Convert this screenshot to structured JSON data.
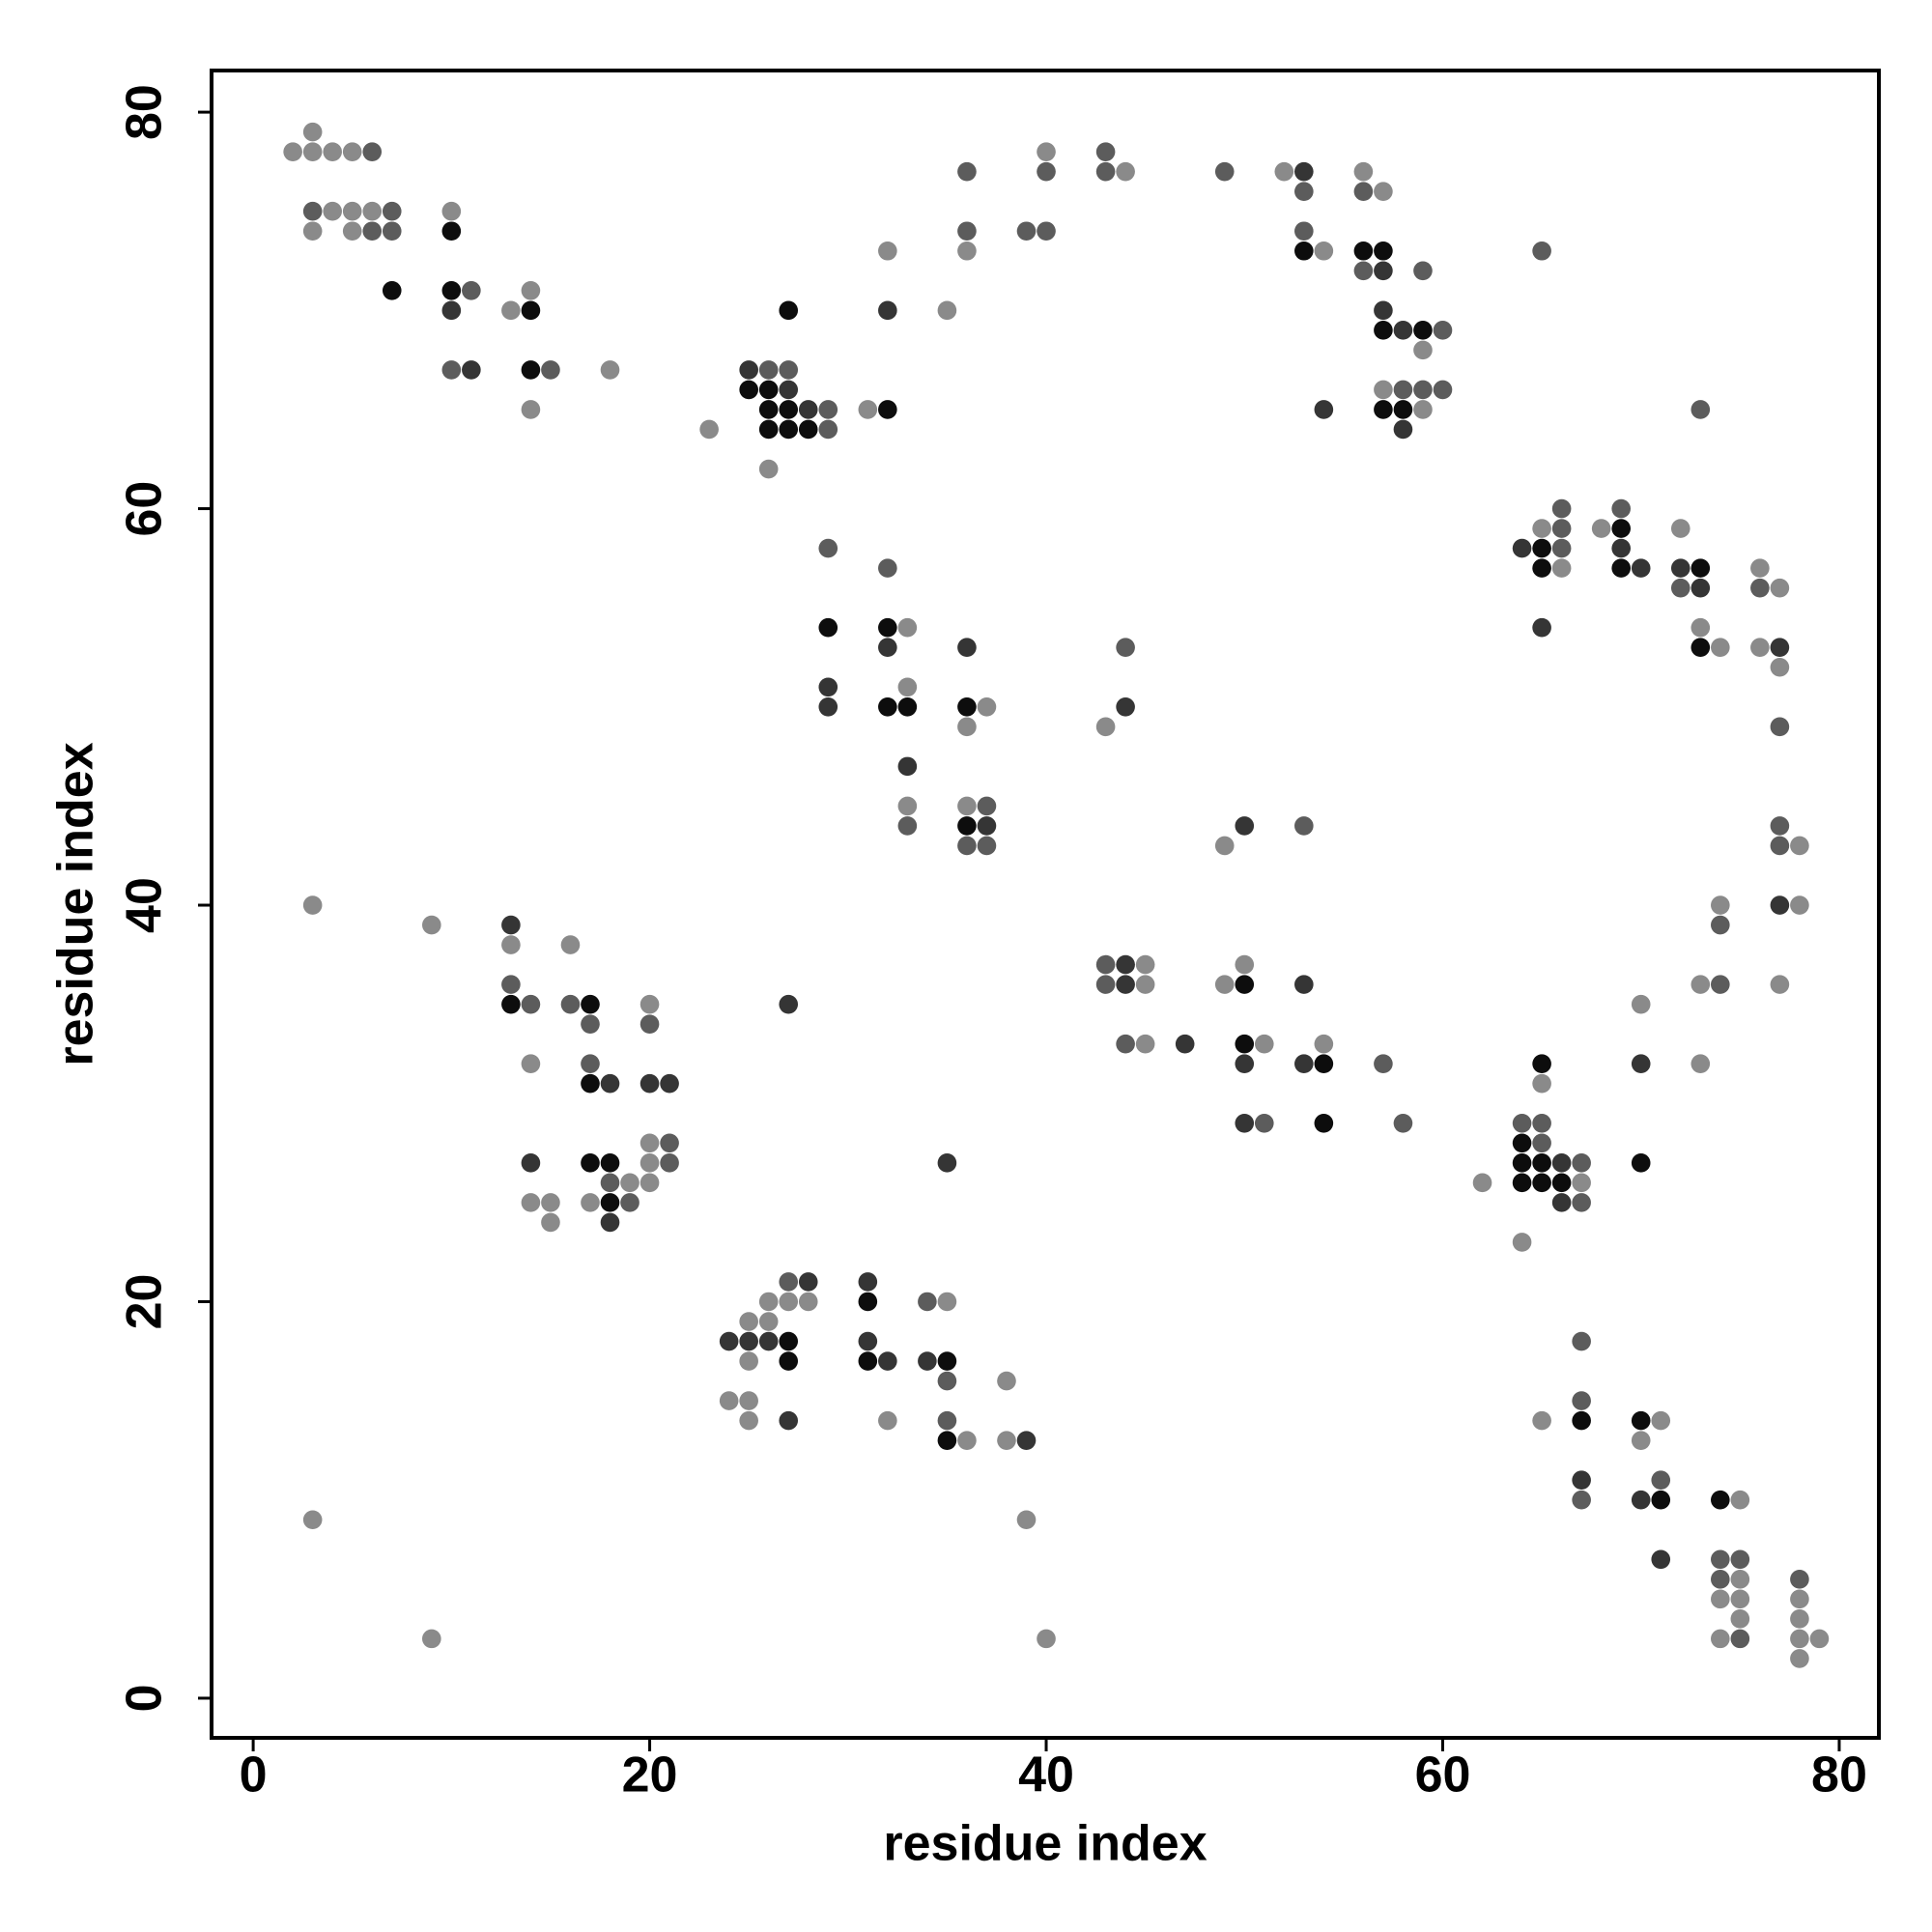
{
  "chart_data": {
    "type": "scatter",
    "x_label": "residue index",
    "y_label": "residue index",
    "xlim": [
      -2.1,
      82.0
    ],
    "ylim": [
      -2.0,
      82.1
    ],
    "xticks": [
      0,
      20,
      40,
      60,
      80
    ],
    "yticks": [
      0,
      20,
      40,
      60,
      80
    ],
    "series": [
      {
        "color": "#0d0d0d",
        "x": [
          7,
          10,
          10,
          13,
          14,
          14,
          17,
          17,
          17,
          18,
          18,
          25,
          26,
          26,
          26,
          27,
          27,
          27,
          27,
          27,
          28,
          29,
          31,
          31,
          32,
          32,
          32,
          33,
          35,
          35,
          36,
          36,
          50,
          50,
          53,
          54,
          54,
          56,
          57,
          57,
          57,
          58,
          59,
          64,
          64,
          64,
          65,
          65,
          65,
          65,
          65,
          66,
          67,
          69,
          69,
          70,
          70,
          71,
          73,
          73,
          74
        ],
        "values": [
          71,
          74,
          71,
          35,
          70,
          67,
          35,
          31,
          27,
          27,
          25,
          66,
          66,
          65,
          64,
          70,
          65,
          64,
          18,
          17,
          64,
          54,
          20,
          17,
          65,
          54,
          50,
          50,
          17,
          13,
          50,
          44,
          36,
          33,
          73,
          32,
          29,
          73,
          73,
          69,
          65,
          65,
          69,
          28,
          27,
          26,
          58,
          57,
          32,
          27,
          26,
          26,
          14,
          59,
          57,
          27,
          14,
          10,
          57,
          53,
          10
        ]
      },
      {
        "color": "#353535",
        "x": [
          10,
          11,
          13,
          14,
          18,
          18,
          20,
          21,
          24,
          25,
          25,
          26,
          27,
          27,
          27,
          28,
          28,
          29,
          29,
          31,
          31,
          32,
          32,
          32,
          33,
          34,
          35,
          36,
          37,
          39,
          44,
          44,
          44,
          47,
          50,
          50,
          50,
          53,
          53,
          53,
          54,
          57,
          57,
          58,
          58,
          64,
          65,
          66,
          66,
          67,
          69,
          70,
          70,
          70,
          71,
          72,
          73,
          77,
          77
        ],
        "values": [
          70,
          67,
          39,
          27,
          31,
          24,
          31,
          31,
          18,
          67,
          18,
          18,
          66,
          35,
          14,
          65,
          21,
          51,
          50,
          21,
          18,
          70,
          53,
          17,
          47,
          17,
          27,
          53,
          44,
          13,
          50,
          37,
          36,
          33,
          44,
          32,
          29,
          77,
          36,
          32,
          65,
          72,
          70,
          69,
          64,
          58,
          54,
          27,
          25,
          11,
          58,
          57,
          32,
          10,
          7,
          57,
          56,
          53,
          40
        ]
      },
      {
        "color": "#5c5c5c",
        "x": [
          3,
          6,
          6,
          7,
          7,
          10,
          11,
          13,
          14,
          15,
          16,
          17,
          17,
          18,
          19,
          20,
          21,
          21,
          26,
          27,
          27,
          29,
          29,
          29,
          32,
          33,
          34,
          35,
          35,
          36,
          36,
          36,
          37,
          37,
          39,
          40,
          40,
          43,
          43,
          43,
          43,
          44,
          44,
          49,
          51,
          53,
          53,
          53,
          56,
          56,
          57,
          58,
          58,
          59,
          59,
          60,
          60,
          64,
          65,
          65,
          65,
          66,
          66,
          66,
          67,
          67,
          67,
          67,
          67,
          69,
          71,
          72,
          73,
          74,
          74,
          74,
          74,
          75,
          75,
          76,
          77,
          77,
          77,
          78
        ],
        "values": [
          75,
          78,
          74,
          75,
          74,
          67,
          71,
          36,
          35,
          67,
          35,
          34,
          32,
          26,
          25,
          34,
          28,
          27,
          67,
          67,
          21,
          65,
          64,
          58,
          57,
          44,
          20,
          16,
          14,
          77,
          74,
          43,
          45,
          43,
          74,
          77,
          74,
          78,
          77,
          37,
          36,
          53,
          33,
          77,
          29,
          76,
          74,
          44,
          76,
          72,
          32,
          66,
          29,
          72,
          66,
          69,
          66,
          29,
          73,
          29,
          28,
          60,
          59,
          58,
          27,
          25,
          18,
          15,
          10,
          60,
          11,
          56,
          65,
          39,
          36,
          7,
          6,
          7,
          3,
          56,
          49,
          44,
          43,
          6
        ]
      },
      {
        "color": "#8a8a8a",
        "x": [
          2,
          3,
          3,
          3,
          3,
          3,
          4,
          4,
          5,
          5,
          5,
          6,
          9,
          9,
          10,
          13,
          13,
          14,
          14,
          14,
          14,
          15,
          15,
          16,
          17,
          18,
          19,
          20,
          20,
          20,
          20,
          23,
          24,
          25,
          25,
          25,
          25,
          26,
          26,
          26,
          27,
          28,
          31,
          32,
          32,
          33,
          33,
          33,
          35,
          35,
          36,
          36,
          36,
          36,
          37,
          38,
          38,
          39,
          40,
          40,
          43,
          44,
          45,
          45,
          45,
          49,
          49,
          50,
          51,
          52,
          54,
          54,
          56,
          57,
          57,
          59,
          59,
          62,
          64,
          65,
          65,
          65,
          66,
          67,
          68,
          70,
          70,
          71,
          72,
          73,
          73,
          73,
          74,
          74,
          74,
          74,
          75,
          75,
          75,
          75,
          76,
          76,
          77,
          77,
          77,
          78,
          78,
          78,
          78,
          78,
          78,
          79
        ],
        "values": [
          78,
          79,
          78,
          74,
          40,
          9,
          78,
          75,
          78,
          75,
          74,
          75,
          39,
          3,
          75,
          70,
          38,
          71,
          65,
          32,
          25,
          25,
          24,
          38,
          25,
          67,
          26,
          35,
          28,
          27,
          26,
          64,
          15,
          19,
          17,
          15,
          14,
          62,
          20,
          19,
          20,
          20,
          65,
          73,
          14,
          54,
          51,
          45,
          70,
          20,
          73,
          49,
          45,
          13,
          50,
          16,
          13,
          9,
          78,
          3,
          49,
          77,
          37,
          36,
          33,
          43,
          36,
          37,
          33,
          77,
          73,
          33,
          77,
          76,
          66,
          68,
          65,
          26,
          23,
          59,
          31,
          14,
          57,
          26,
          59,
          35,
          13,
          14,
          59,
          54,
          36,
          32,
          53,
          40,
          5,
          3,
          10,
          6,
          5,
          4,
          57,
          53,
          56,
          52,
          36,
          43,
          40,
          5,
          4,
          3,
          2,
          3
        ]
      }
    ]
  }
}
